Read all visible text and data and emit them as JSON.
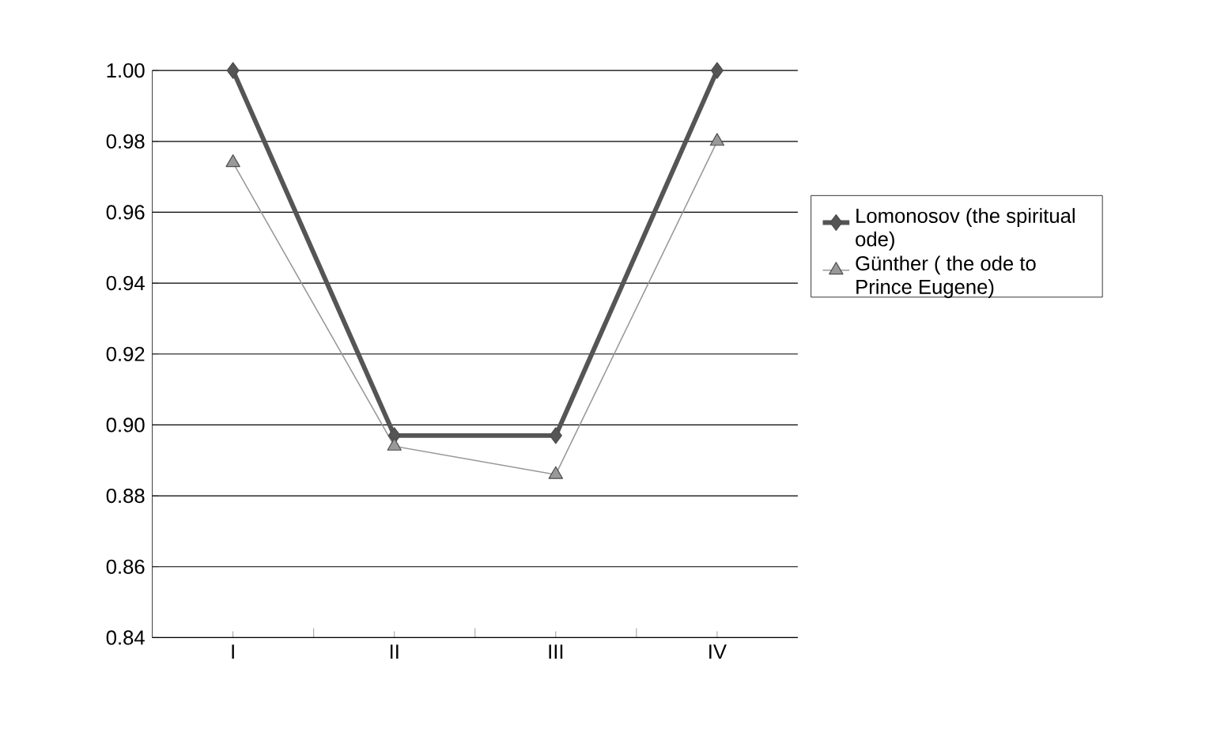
{
  "chart_data": {
    "type": "line",
    "categories": [
      "I",
      "II",
      "III",
      "IV"
    ],
    "series": [
      {
        "name": "Lomonosov (the spiritual ode)",
        "color": "#555555",
        "marker": "diamond",
        "values": [
          1.0,
          0.897,
          0.897,
          1.0
        ]
      },
      {
        "name": "Günther ( the ode to Prince Eugene)",
        "color": "#999999",
        "marker": "triangle",
        "values": [
          0.974,
          0.894,
          0.886,
          0.98
        ]
      }
    ],
    "ylim": [
      0.84,
      1.0
    ],
    "yticks": [
      {
        "value": 1.0,
        "label": "1.00"
      },
      {
        "value": 0.98,
        "label": "0.98"
      },
      {
        "value": 0.96,
        "label": "0.96"
      },
      {
        "value": 0.94,
        "label": "0.94"
      },
      {
        "value": 0.92,
        "label": "0.92"
      },
      {
        "value": 0.9,
        "label": "0.90"
      },
      {
        "value": 0.88,
        "label": "0.88"
      },
      {
        "value": 0.86,
        "label": "0.86"
      },
      {
        "value": 0.84,
        "label": "0.84"
      }
    ],
    "grid": "y",
    "legend": "right"
  }
}
